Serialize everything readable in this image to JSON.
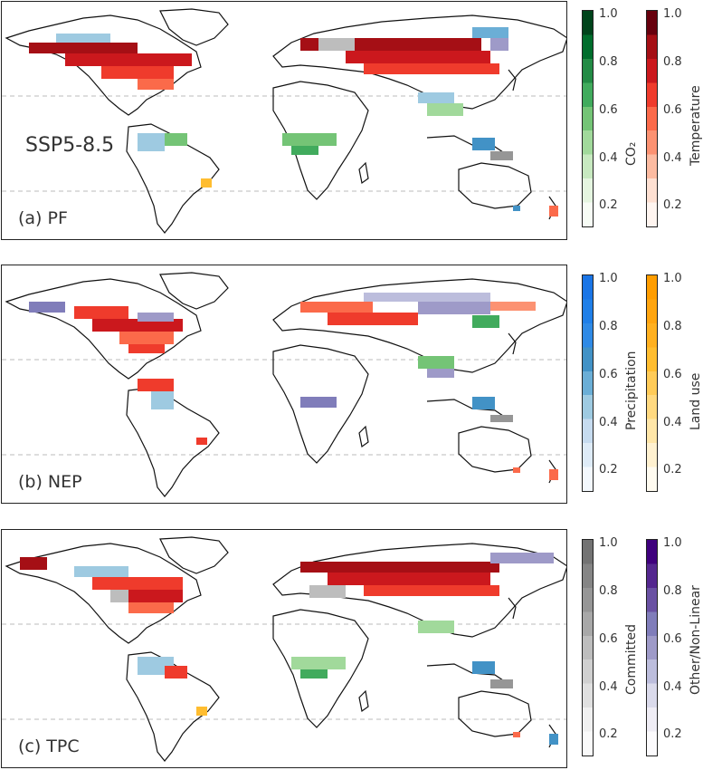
{
  "panels": [
    {
      "label": "(a) PF",
      "scenario": "SSP5-8.5"
    },
    {
      "label": "(b) NEP",
      "scenario": ""
    },
    {
      "label": "(c) TPC",
      "scenario": ""
    }
  ],
  "colorbars": [
    {
      "title": "CO₂",
      "ticks": [
        "1.0",
        "0.8",
        "0.6",
        "0.4",
        "0.2"
      ],
      "colors": [
        "#f7fcf5",
        "#e5f5e0",
        "#c7e9c0",
        "#a1d99b",
        "#74c476",
        "#41ab5d",
        "#238b45",
        "#006d2c",
        "#00441b"
      ]
    },
    {
      "title": "Temperature",
      "ticks": [
        "1.0",
        "0.8",
        "0.6",
        "0.4",
        "0.2"
      ],
      "colors": [
        "#fff5f0",
        "#fee0d2",
        "#fcbba1",
        "#fc9272",
        "#fb6a4a",
        "#ef3b2c",
        "#cb181d",
        "#a50f15",
        "#67000d"
      ]
    },
    {
      "title": "Precipitation",
      "ticks": [
        "1.0",
        "0.8",
        "0.6",
        "0.4",
        "0.2"
      ],
      "colors": [
        "#f3f8fd",
        "#deebf7",
        "#c6dbef",
        "#9ecae1",
        "#6baed6",
        "#4292c6",
        "#2f8ae6",
        "#1f7fe8",
        "#1a75e6"
      ]
    },
    {
      "title": "Land use",
      "ticks": [
        "1.0",
        "0.8",
        "0.6",
        "0.4",
        "0.2"
      ],
      "colors": [
        "#fffbf0",
        "#fff1d0",
        "#ffe6a8",
        "#ffd980",
        "#ffcb58",
        "#ffbd30",
        "#ffb020",
        "#ffa510",
        "#ff9d00"
      ]
    },
    {
      "title": "Committed",
      "ticks": [
        "1.0",
        "0.8",
        "0.6",
        "0.4",
        "0.2"
      ],
      "colors": [
        "#fafafa",
        "#f0f0f0",
        "#e0e0e0",
        "#d0d0d0",
        "#bdbdbd",
        "#a8a8a8",
        "#969696",
        "#858585",
        "#737373"
      ]
    },
    {
      "title": "Other/Non-Linear",
      "ticks": [
        "1.0",
        "0.8",
        "0.6",
        "0.4",
        "0.2"
      ],
      "colors": [
        "#fcfbfd",
        "#efedf5",
        "#dadaeb",
        "#bcbddc",
        "#9e9ac8",
        "#807dba",
        "#6a51a3",
        "#54278f",
        "#3f007d"
      ]
    }
  ]
}
